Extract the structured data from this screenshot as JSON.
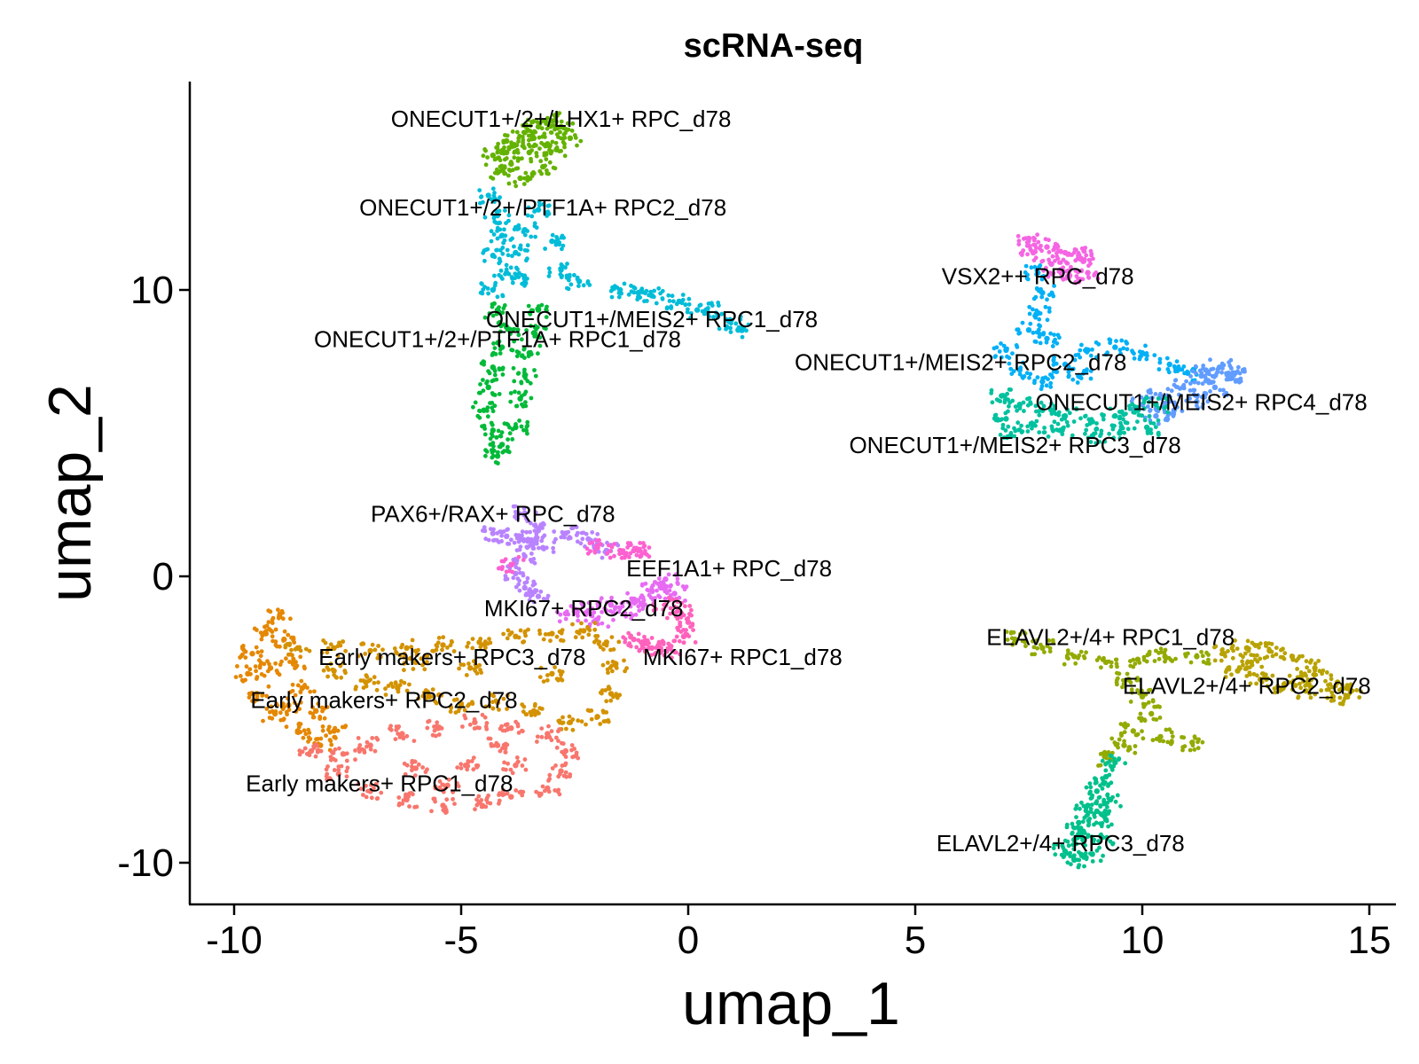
{
  "chart_data": {
    "type": "scatter",
    "title": "scRNA-seq",
    "xlabel": "umap_1",
    "ylabel": "umap_2",
    "xlim": [
      -11,
      16
    ],
    "ylim": [
      -11.5,
      17.2
    ],
    "xticks": [
      -10,
      -5,
      0,
      5,
      10,
      15
    ],
    "yticks": [
      -10,
      0,
      10
    ],
    "xtick_labels": [
      "-10",
      "-5",
      "0",
      "5",
      "10",
      "15"
    ],
    "ytick_labels": [
      "-10",
      "0",
      "10"
    ],
    "grid": false,
    "legend": "none",
    "series": [
      {
        "name": "ONECUT1+/2+/LHX1+ RPC_d78",
        "color": "#64b200",
        "points": [
          [
            -4.3,
            14.7
          ],
          [
            -4.0,
            15.2
          ],
          [
            -3.6,
            15.5
          ],
          [
            -3.3,
            15.7
          ],
          [
            -3.0,
            15.9
          ],
          [
            -2.8,
            15.7
          ],
          [
            -2.6,
            15.3
          ],
          [
            -3.1,
            15.1
          ],
          [
            -3.5,
            14.8
          ],
          [
            -3.9,
            14.4
          ],
          [
            -4.2,
            14.1
          ],
          [
            -3.7,
            13.9
          ],
          [
            -3.2,
            14.3
          ],
          [
            -2.9,
            14.9
          ],
          [
            -3.4,
            15.3
          ],
          [
            -4.0,
            14.8
          ]
        ],
        "label_pos": [
          -2.8,
          15.7
        ]
      },
      {
        "name": "ONECUT1+/2+/PTF1A+ RPC2_d78",
        "color": "#00bcd8",
        "points": [
          [
            -4.4,
            13.3
          ],
          [
            -4.2,
            12.6
          ],
          [
            -4.1,
            11.9
          ],
          [
            -4.3,
            11.2
          ],
          [
            -4.0,
            10.6
          ],
          [
            -3.8,
            11.3
          ],
          [
            -3.6,
            12.1
          ],
          [
            -3.3,
            12.8
          ],
          [
            -3.0,
            11.7
          ],
          [
            -3.6,
            10.4
          ],
          [
            -4.3,
            10.0
          ],
          [
            -2.8,
            10.7
          ],
          [
            -2.4,
            10.3
          ],
          [
            -1.5,
            10.0
          ],
          [
            -0.8,
            9.8
          ],
          [
            -0.2,
            9.6
          ],
          [
            0.4,
            9.3
          ],
          [
            0.9,
            8.9
          ],
          [
            1.1,
            8.6
          ],
          [
            -1.1,
            9.9
          ],
          [
            0.2,
            9.3
          ]
        ],
        "label_pos": [
          -3.2,
          12.6
        ]
      },
      {
        "name": "ONECUT1+/MEIS2+ RPC1_d78",
        "color": "#01b0f6",
        "points": [
          [
            7.7,
            10.6
          ],
          [
            7.8,
            9.9
          ],
          [
            7.7,
            9.2
          ],
          [
            7.5,
            8.6
          ],
          [
            7.0,
            7.9
          ],
          [
            7.3,
            7.2
          ],
          [
            7.8,
            6.8
          ],
          [
            8.3,
            7.4
          ],
          [
            8.8,
            7.9
          ],
          [
            9.4,
            8.0
          ],
          [
            10.0,
            7.8
          ],
          [
            10.6,
            7.4
          ],
          [
            11.0,
            7.1
          ],
          [
            7.9,
            8.3
          ],
          [
            8.6,
            7.0
          ]
        ],
        "label_pos": [
          -0.8,
          8.7
        ]
      },
      {
        "name": "ONECUT1+/2+/PTF1A+ RPC1_d78",
        "color": "#00ba38",
        "points": [
          [
            -4.2,
            9.3
          ],
          [
            -4.0,
            8.7
          ],
          [
            -4.1,
            8.0
          ],
          [
            -4.3,
            7.3
          ],
          [
            -4.4,
            6.6
          ],
          [
            -4.5,
            5.8
          ],
          [
            -4.3,
            5.1
          ],
          [
            -4.1,
            4.6
          ],
          [
            -3.8,
            5.2
          ],
          [
            -3.7,
            6.2
          ],
          [
            -3.6,
            7.0
          ],
          [
            -3.5,
            7.8
          ],
          [
            -3.4,
            8.5
          ],
          [
            -3.3,
            9.3
          ],
          [
            -4.2,
            4.2
          ]
        ],
        "label_pos": [
          -4.2,
          8.0
        ]
      },
      {
        "name": "VSX2++ RPC_d78",
        "color": "#f565e3",
        "points": [
          [
            7.5,
            11.8
          ],
          [
            7.9,
            11.5
          ],
          [
            8.3,
            11.3
          ],
          [
            8.7,
            11.0
          ],
          [
            8.8,
            10.6
          ],
          [
            8.4,
            10.5
          ],
          [
            8.0,
            10.9
          ],
          [
            7.6,
            11.3
          ],
          [
            8.6,
            11.2
          ],
          [
            8.2,
            10.7
          ]
        ],
        "label_pos": [
          7.7,
          10.2
        ]
      },
      {
        "name": "ONECUT1+/MEIS2+ RPC2_d78",
        "color": "#619cff",
        "points": [
          [
            10.0,
            6.0
          ],
          [
            10.4,
            6.3
          ],
          [
            10.9,
            6.6
          ],
          [
            11.3,
            7.0
          ],
          [
            11.7,
            7.3
          ],
          [
            12.0,
            7.1
          ],
          [
            11.6,
            6.6
          ],
          [
            11.2,
            6.1
          ],
          [
            10.7,
            5.8
          ],
          [
            10.3,
            5.6
          ],
          [
            11.9,
            6.9
          ],
          [
            11.4,
            7.2
          ]
        ],
        "label_pos": [
          6.0,
          7.2
        ]
      },
      {
        "name": "ONECUT1+/MEIS2+ RPC4_d78",
        "color": "#00c19f",
        "points": [
          [
            6.9,
            6.3
          ],
          [
            7.3,
            6.0
          ],
          [
            7.8,
            5.8
          ],
          [
            8.3,
            5.6
          ],
          [
            8.9,
            5.4
          ],
          [
            9.4,
            5.6
          ],
          [
            9.9,
            5.8
          ],
          [
            10.3,
            6.0
          ],
          [
            10.1,
            5.2
          ],
          [
            9.5,
            5.0
          ],
          [
            8.9,
            4.9
          ],
          [
            8.2,
            5.1
          ],
          [
            7.6,
            5.3
          ],
          [
            7.0,
            5.5
          ],
          [
            7.1,
            4.9
          ]
        ],
        "label_pos": [
          11.3,
          5.8
        ]
      },
      {
        "name": "ONECUT1+/MEIS2+ RPC3_d78",
        "color": "#00c19f",
        "points": [],
        "label_pos": [
          7.2,
          4.3
        ]
      },
      {
        "name": "PAX6+/RAX+ RPC_d78",
        "color": "#b983ff",
        "points": [
          [
            -4.3,
            1.5
          ],
          [
            -4.0,
            1.4
          ],
          [
            -3.7,
            1.3
          ],
          [
            -3.4,
            1.2
          ],
          [
            -3.2,
            1.0
          ],
          [
            -3.6,
            0.7
          ],
          [
            -3.8,
            0.1
          ],
          [
            -3.6,
            -0.4
          ],
          [
            -3.3,
            -0.7
          ],
          [
            -3.6,
            2.2
          ],
          [
            -3.3,
            1.6
          ],
          [
            -2.7,
            1.5
          ],
          [
            -2.2,
            1.3
          ],
          [
            -1.8,
            0.9
          ]
        ],
        "label_pos": [
          -4.3,
          1.9
        ]
      },
      {
        "name": "EEF1A1+ RPC_d78",
        "color": "#fd61d1",
        "points": [
          [
            -1.2,
            0.9
          ],
          [
            -1.5,
            0.9
          ],
          [
            -2.0,
            1.0
          ],
          [
            -1.1,
            0.9
          ],
          [
            -3.9,
            0.4
          ]
        ],
        "label_pos": [
          0.9,
          0.0
        ]
      },
      {
        "name": "MKI67+ RPC2_d78",
        "color": "#e76bf3",
        "points": [
          [
            -2.7,
            -1.3
          ],
          [
            -2.2,
            -1.2
          ],
          [
            -1.7,
            -1.0
          ],
          [
            -1.2,
            -0.8
          ],
          [
            -0.8,
            -0.5
          ],
          [
            -0.5,
            -0.1
          ],
          [
            -0.6,
            -0.4
          ],
          [
            -1.0,
            -1.0
          ],
          [
            -1.4,
            -1.3
          ],
          [
            -2.0,
            -1.5
          ],
          [
            -0.3,
            -0.6
          ]
        ],
        "label_pos": [
          -2.3,
          -1.4
        ]
      },
      {
        "name": "MKI67+ RPC1_d78",
        "color": "#ff62bc",
        "points": [
          [
            -1.2,
            -2.2
          ],
          [
            -0.8,
            -2.5
          ],
          [
            -0.4,
            -2.5
          ],
          [
            -0.1,
            -2.1
          ],
          [
            0.0,
            -1.6
          ],
          [
            -0.2,
            -1.2
          ],
          [
            -0.5,
            -1.0
          ],
          [
            -1.0,
            -2.4
          ],
          [
            -0.6,
            -2.6
          ]
        ],
        "label_pos": [
          1.2,
          -3.1
        ]
      },
      {
        "name": "Early makers+ RPC3_d78",
        "color": "#d39200",
        "points": [
          [
            -8.6,
            -2.5
          ],
          [
            -7.8,
            -2.5
          ],
          [
            -7.0,
            -2.6
          ],
          [
            -6.2,
            -2.5
          ],
          [
            -5.4,
            -2.4
          ],
          [
            -4.6,
            -2.3
          ],
          [
            -3.8,
            -2.1
          ],
          [
            -3.0,
            -2.0
          ],
          [
            -2.3,
            -1.9
          ],
          [
            -1.8,
            -2.3
          ],
          [
            -1.6,
            -3.1
          ],
          [
            -1.7,
            -4.1
          ],
          [
            -2.0,
            -4.9
          ],
          [
            -2.6,
            -5.1
          ],
          [
            -3.4,
            -4.7
          ],
          [
            -4.2,
            -4.4
          ],
          [
            -5.0,
            -4.5
          ],
          [
            -5.7,
            -4.2
          ],
          [
            -6.4,
            -3.9
          ],
          [
            -7.1,
            -3.7
          ],
          [
            -7.8,
            -3.3
          ],
          [
            -4.8,
            -3.2
          ],
          [
            -3.0,
            -3.4
          ],
          [
            -6.0,
            -3.0
          ]
        ],
        "label_pos": [
          -5.2,
          -3.1
        ]
      },
      {
        "name": "Early makers+ RPC2_d78",
        "color": "#e58700",
        "points": [
          [
            -9.0,
            -1.4
          ],
          [
            -9.3,
            -2.0
          ],
          [
            -9.6,
            -2.7
          ],
          [
            -9.7,
            -3.4
          ],
          [
            -9.5,
            -4.1
          ],
          [
            -9.1,
            -4.8
          ],
          [
            -8.6,
            -5.4
          ],
          [
            -8.1,
            -5.9
          ],
          [
            -7.8,
            -5.4
          ],
          [
            -8.2,
            -4.7
          ],
          [
            -8.5,
            -3.9
          ],
          [
            -8.7,
            -3.0
          ],
          [
            -8.9,
            -2.2
          ],
          [
            -9.2,
            -3.2
          ],
          [
            -8.8,
            -4.5
          ]
        ],
        "label_pos": [
          -6.7,
          -4.6
        ]
      },
      {
        "name": "Early makers+ RPC1_d78",
        "color": "#f8766d",
        "points": [
          [
            -8.3,
            -6.1
          ],
          [
            -7.7,
            -6.9
          ],
          [
            -7.0,
            -7.5
          ],
          [
            -6.2,
            -7.8
          ],
          [
            -5.4,
            -8.0
          ],
          [
            -4.6,
            -7.9
          ],
          [
            -3.9,
            -7.7
          ],
          [
            -3.1,
            -7.4
          ],
          [
            -2.8,
            -6.8
          ],
          [
            -2.7,
            -6.1
          ],
          [
            -3.1,
            -5.5
          ],
          [
            -3.9,
            -5.3
          ],
          [
            -4.7,
            -5.1
          ],
          [
            -5.5,
            -5.3
          ],
          [
            -6.3,
            -5.5
          ],
          [
            -7.0,
            -5.9
          ],
          [
            -7.6,
            -6.2
          ],
          [
            -6.0,
            -6.7
          ],
          [
            -4.9,
            -6.6
          ],
          [
            -3.8,
            -6.6
          ],
          [
            -5.3,
            -7.3
          ],
          [
            -4.2,
            -5.9
          ]
        ],
        "label_pos": [
          -6.8,
          -7.5
        ]
      },
      {
        "name": "ELAVL2+/4+ RPC1_d78",
        "color": "#93aa00",
        "points": [
          [
            7.2,
            -2.2
          ],
          [
            7.8,
            -2.5
          ],
          [
            8.5,
            -2.8
          ],
          [
            9.2,
            -3.0
          ],
          [
            9.9,
            -2.9
          ],
          [
            10.5,
            -2.8
          ],
          [
            11.2,
            -2.8
          ],
          [
            9.7,
            -3.6
          ],
          [
            10.0,
            -4.2
          ],
          [
            10.2,
            -4.8
          ],
          [
            9.8,
            -5.4
          ],
          [
            10.4,
            -5.6
          ],
          [
            11.1,
            -5.8
          ],
          [
            9.6,
            -5.9
          ],
          [
            9.3,
            -6.4
          ]
        ],
        "label_pos": [
          9.3,
          -2.4
        ]
      },
      {
        "name": "ELAVL2+/4+ RPC2_d78",
        "color": "#b8a200",
        "points": [
          [
            11.8,
            -2.7
          ],
          [
            12.3,
            -2.5
          ],
          [
            12.8,
            -2.6
          ],
          [
            13.3,
            -2.8
          ],
          [
            13.8,
            -3.2
          ],
          [
            14.3,
            -3.7
          ],
          [
            14.6,
            -4.0
          ],
          [
            14.2,
            -4.2
          ],
          [
            13.6,
            -4.0
          ],
          [
            13.1,
            -3.9
          ],
          [
            12.6,
            -3.6
          ],
          [
            12.1,
            -3.3
          ],
          [
            13.5,
            -3.5
          ],
          [
            12.4,
            -3.0
          ]
        ],
        "label_pos": [
          12.3,
          -4.1
        ]
      },
      {
        "name": "ELAVL2+/4+ RPC3_d78",
        "color": "#00c08b",
        "points": [
          [
            9.4,
            -6.5
          ],
          [
            9.2,
            -7.0
          ],
          [
            9.0,
            -7.5
          ],
          [
            8.8,
            -8.0
          ],
          [
            8.6,
            -8.6
          ],
          [
            8.5,
            -9.2
          ],
          [
            8.3,
            -9.6
          ],
          [
            8.5,
            -9.9
          ],
          [
            8.9,
            -9.7
          ],
          [
            9.1,
            -9.1
          ],
          [
            9.2,
            -8.5
          ],
          [
            9.0,
            -8.2
          ],
          [
            8.7,
            -8.9
          ],
          [
            9.3,
            -7.8
          ]
        ],
        "label_pos": [
          8.2,
          -9.6
        ]
      }
    ]
  }
}
